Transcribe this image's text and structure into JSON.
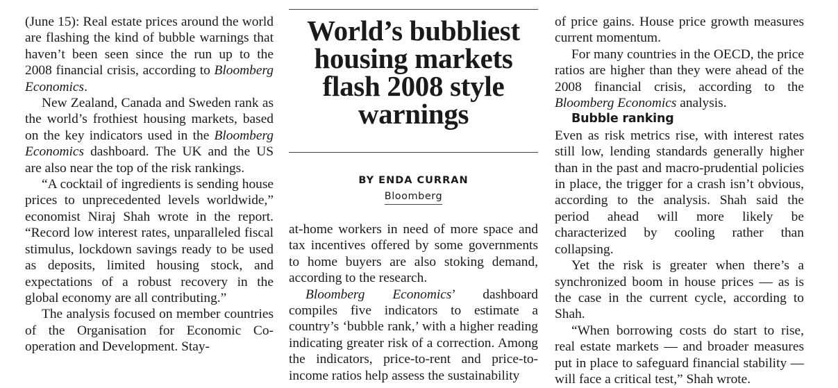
{
  "article": {
    "headline": "World’s bubbliest housing markets flash 2008 style warnings",
    "byline": "BY ENDA CURRAN",
    "source": "Bloomberg"
  },
  "column1": {
    "p1_a": "(June 15): Real estate prices around the world are flashing the kind of bubble warnings that haven’t been seen since the run up to the 2008 financial crisis, according to ",
    "p1_em": "Bloomberg Economics",
    "p1_b": ".",
    "p2_a": "New Zealand, Canada and Sweden rank as the world’s frothiest housing markets, based on the key indicators used in the ",
    "p2_em": "Bloomberg Economics",
    "p2_b": " dashboard. The UK and the US are also near the top of the risk rankings.",
    "p3": "“A cocktail of ingredients is sending house prices to unprecedented levels worldwide,” economist Niraj Shah wrote in the report. “Record low interest rates, unparalleled fiscal stimulus, lockdown savings ready to be used as deposits, limited housing stock, and expectations of a robust recovery in the global economy are all contributing.”",
    "p4": "The analysis focused on member countries of the Organisation for Economic Co-operation and Development. Stay-"
  },
  "column2": {
    "p1": "at-home workers in need of more space and tax incentives offered by some governments to home buyers are also stoking demand, according to the research.",
    "p2_em": "Bloomberg Economics",
    "p2_b": "’ dashboard compiles five indicators to estimate a country’s ‘bubble rank,’ with a higher reading indicating greater risk of a correction. Among the indicators, price-to-rent and price-to-income ratios help assess the sustainability"
  },
  "column3": {
    "p1": "of price gains. House price growth measures current momentum.",
    "p2_a": "For many countries in the OECD, the price ratios are higher than they were ahead of the 2008 financial crisis, according to the ",
    "p2_em": "Bloomberg Economics",
    "p2_b": " analysis.",
    "subhead": "Bubble ranking",
    "p3": "Even as risk metrics rise, with interest rates still low, lending standards generally higher than in the past and macro-prudential policies in place, the trigger for a crash isn’t obvious, according to the analysis. Shah said the period ahead will more likely be characterized by cooling rather than collapsing.",
    "p4": "Yet the risk is greater when there’s a synchronized boom in house prices — as is the case in the current cycle, according to Shah.",
    "p5": "“When borrowing costs do start to rise, real estate markets — and broader measures put in place to safeguard financial stability — will face a critical test,” Shah wrote."
  }
}
